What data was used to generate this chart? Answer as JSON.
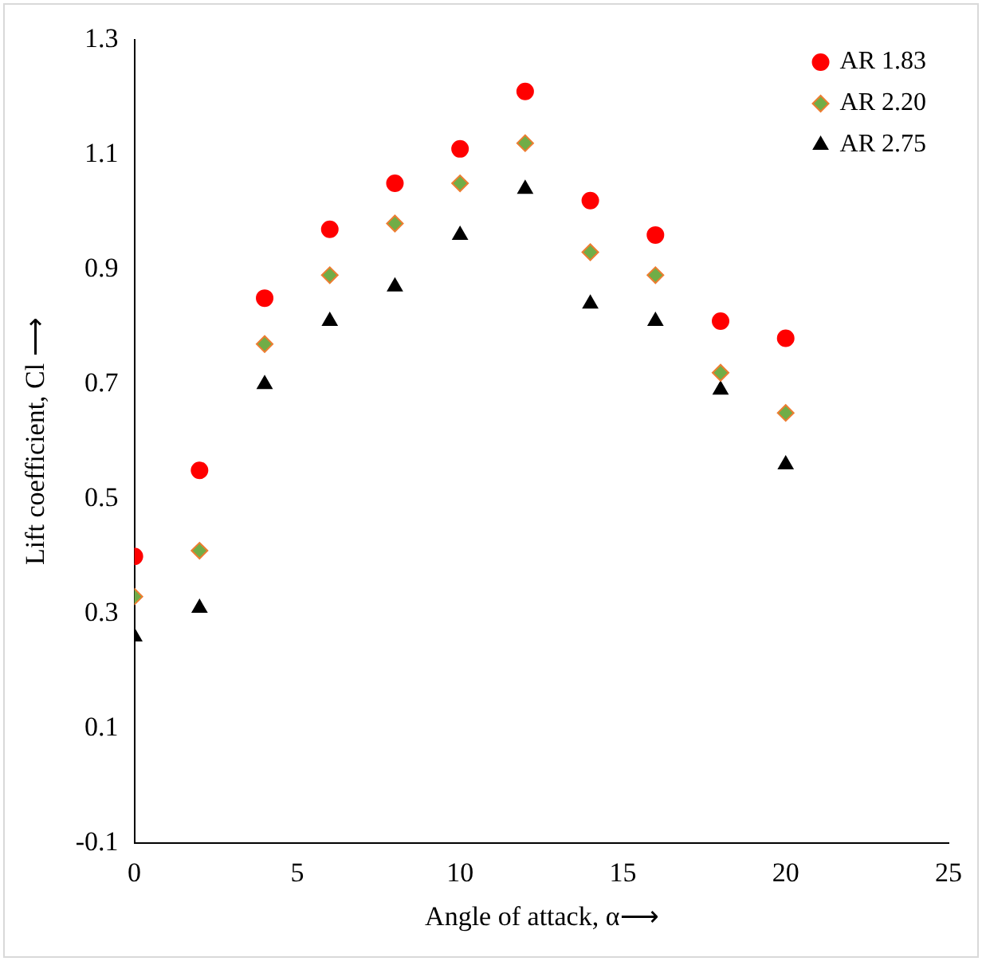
{
  "chart_data": {
    "type": "scatter",
    "xlabel": "Angle of attack, α⟶",
    "ylabel": "Lift coefficient, Cl ⟶",
    "x": [
      0,
      2,
      4,
      6,
      8,
      10,
      12,
      14,
      16,
      18,
      20
    ],
    "series": [
      {
        "name": "AR 1.83",
        "color": "#ff0000",
        "marker": "circle",
        "values": [
          0.4,
          0.55,
          0.85,
          0.97,
          1.05,
          1.11,
          1.21,
          1.02,
          0.96,
          0.81,
          0.78
        ]
      },
      {
        "name": "AR 2.20",
        "color": "#70ad47",
        "marker": "diamond",
        "values": [
          0.33,
          0.41,
          0.77,
          0.89,
          0.98,
          1.05,
          1.12,
          0.93,
          0.89,
          0.72,
          0.65
        ]
      },
      {
        "name": "AR 2.75",
        "color": "#000000",
        "marker": "triangle",
        "values": [
          0.26,
          0.31,
          0.7,
          0.81,
          0.87,
          0.96,
          1.04,
          0.84,
          0.81,
          0.69,
          0.56
        ]
      }
    ],
    "xlim": [
      0,
      25
    ],
    "xticks": [
      0,
      5,
      10,
      15,
      20,
      25
    ],
    "ylim": [
      -0.1,
      1.3
    ],
    "yticks": [
      -0.1,
      0.1,
      0.3,
      0.5,
      0.7,
      0.9,
      1.1,
      1.3
    ],
    "grid": false,
    "legend": "top right"
  }
}
